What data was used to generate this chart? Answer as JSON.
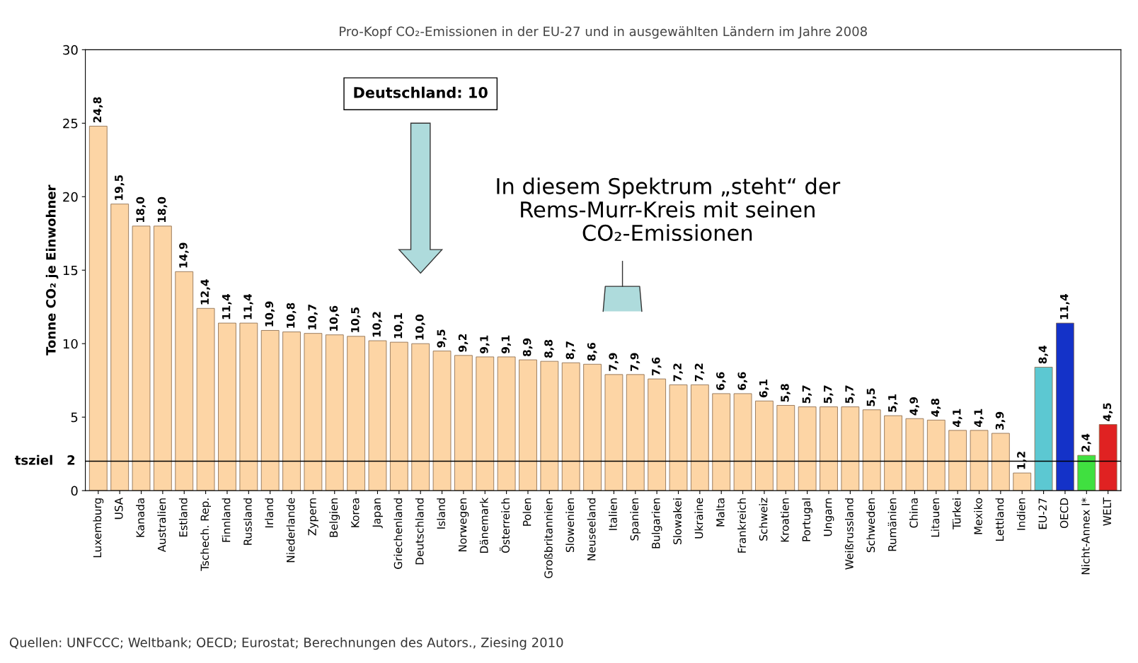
{
  "chart_data": {
    "type": "bar",
    "title": "Pro-Kopf CO₂-Emissionen in der EU-27 und in ausgewählten Ländern im Jahre 2008",
    "ylabel": "Tonne CO₂ je Einwohner",
    "categories": [
      "Luxemburg",
      "USA",
      "Kanada",
      "Australien",
      "Estland",
      "Tschech. Rep.",
      "Finnland",
      "Russland",
      "Irland",
      "Niederlande",
      "Zypern",
      "Belgien",
      "Korea",
      "Japan",
      "Griechenland",
      "Deutschland",
      "Island",
      "Norwegen",
      "Dänemark",
      "Österreich",
      "Polen",
      "Großbritannien",
      "Slowenien",
      "Neuseeland",
      "Italien",
      "Spanien",
      "Bulgarien",
      "Slowakei",
      "Ukraine",
      "Malta",
      "Frankreich",
      "Schweiz",
      "Kroatien",
      "Portugal",
      "Ungarn",
      "Weißrussland",
      "Schweden",
      "Rumänien",
      "China",
      "Litauen",
      "Türkei",
      "Mexiko",
      "Lettland",
      "Indien",
      "EU-27",
      "OECD",
      "Nicht-Annex I*",
      "WELT"
    ],
    "values": [
      24.8,
      19.5,
      18.0,
      18.0,
      14.9,
      12.4,
      11.4,
      11.4,
      10.9,
      10.8,
      10.7,
      10.6,
      10.5,
      10.2,
      10.1,
      10.0,
      9.5,
      9.2,
      9.1,
      9.1,
      8.9,
      8.8,
      8.7,
      8.6,
      7.9,
      7.9,
      7.6,
      7.2,
      7.2,
      6.6,
      6.6,
      6.1,
      5.8,
      5.7,
      5.7,
      5.7,
      5.5,
      5.1,
      4.9,
      4.8,
      4.1,
      4.1,
      3.9,
      1.2,
      8.4,
      11.4,
      2.4,
      4.5
    ],
    "value_labels": [
      "24,8",
      "19,5",
      "18,0",
      "18,0",
      "14,9",
      "12,4",
      "11,4",
      "11,4",
      "10,9",
      "10,8",
      "10,7",
      "10,6",
      "10,5",
      "10,2",
      "10,1",
      "10,0",
      "9,5",
      "9,2",
      "9,1",
      "9,1",
      "8,9",
      "8,8",
      "8,7",
      "8,6",
      "7,9",
      "7,9",
      "7,6",
      "7,2",
      "7,2",
      "6,6",
      "6,6",
      "6,1",
      "5,8",
      "5,7",
      "5,7",
      "5,7",
      "5,5",
      "5,1",
      "4,9",
      "4,8",
      "4,1",
      "4,1",
      "3,9",
      "1,2",
      "8,4",
      "11,4",
      "2,4",
      "4,5"
    ],
    "colors": [
      "#fdd5a5",
      "#fdd5a5",
      "#fdd5a5",
      "#fdd5a5",
      "#fdd5a5",
      "#fdd5a5",
      "#fdd5a5",
      "#fdd5a5",
      "#fdd5a5",
      "#fdd5a5",
      "#fdd5a5",
      "#fdd5a5",
      "#fdd5a5",
      "#fdd5a5",
      "#fdd5a5",
      "#fdd5a5",
      "#fdd5a5",
      "#fdd5a5",
      "#fdd5a5",
      "#fdd5a5",
      "#fdd5a5",
      "#fdd5a5",
      "#fdd5a5",
      "#fdd5a5",
      "#fdd5a5",
      "#fdd5a5",
      "#fdd5a5",
      "#fdd5a5",
      "#fdd5a5",
      "#fdd5a5",
      "#fdd5a5",
      "#fdd5a5",
      "#fdd5a5",
      "#fdd5a5",
      "#fdd5a5",
      "#fdd5a5",
      "#fdd5a5",
      "#fdd5a5",
      "#fdd5a5",
      "#fdd5a5",
      "#fdd5a5",
      "#fdd5a5",
      "#fdd5a5",
      "#fdd5a5",
      "#5cc8d2",
      "#1432c8",
      "#40e040",
      "#e02222"
    ],
    "ylim": [
      0,
      30
    ],
    "yticks": [
      0,
      5,
      10,
      15,
      20,
      25,
      30
    ],
    "grid": false,
    "legend": false,
    "ref_lines": [
      {
        "axis": "y",
        "value": 2,
        "label": "tsziel   2",
        "color": "#000000"
      }
    ],
    "annotations": [
      "Deutschland: 10",
      "In diesem Spektrum „steht“ der\nRems-Murr-Kreis mit seinen\nCO₂-Emissionen",
      "Quellen: UNFCCC; Weltbank; OECD; Eurostat; Berechnungen des Autors., Ziesing 2010"
    ]
  }
}
